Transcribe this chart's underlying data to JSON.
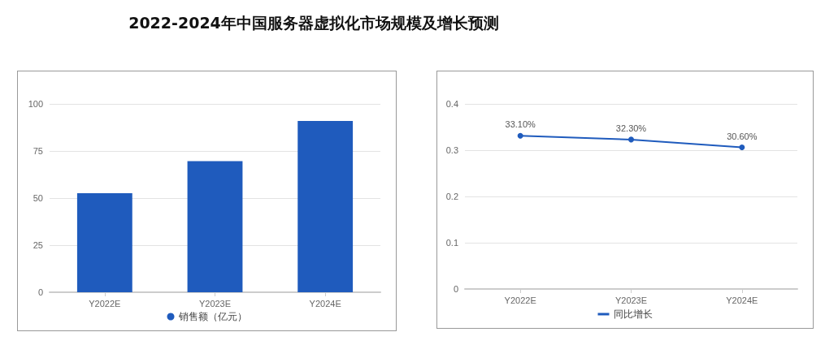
{
  "chart_data": [
    {
      "type": "bar",
      "title": "2022-2024年中国服务器虚拟化市场规模及增长预测",
      "categories": [
        "Y2022E",
        "Y2023E",
        "Y2024E"
      ],
      "series": [
        {
          "name": "销售额（亿元）",
          "color": "#1f5bbd",
          "values": [
            52.6,
            69.6,
            90.9
          ]
        }
      ],
      "ylim": [
        0,
        100
      ],
      "yticks": [
        0,
        25,
        50,
        75,
        100
      ],
      "grid": "y",
      "legend": "bottom"
    },
    {
      "type": "line",
      "categories": [
        "Y2022E",
        "Y2023E",
        "Y2024E"
      ],
      "series": [
        {
          "name": "同比增长",
          "color": "#1f5bbd",
          "values": [
            0.331,
            0.323,
            0.306
          ],
          "value_labels": [
            "33.10%",
            "32.30%",
            "30.60%"
          ]
        }
      ],
      "ylim": [
        0,
        0.4
      ],
      "yticks": [
        0,
        0.1,
        0.2,
        0.3,
        0.4
      ],
      "grid": "y",
      "legend": "bottom",
      "marker": "circle"
    }
  ]
}
